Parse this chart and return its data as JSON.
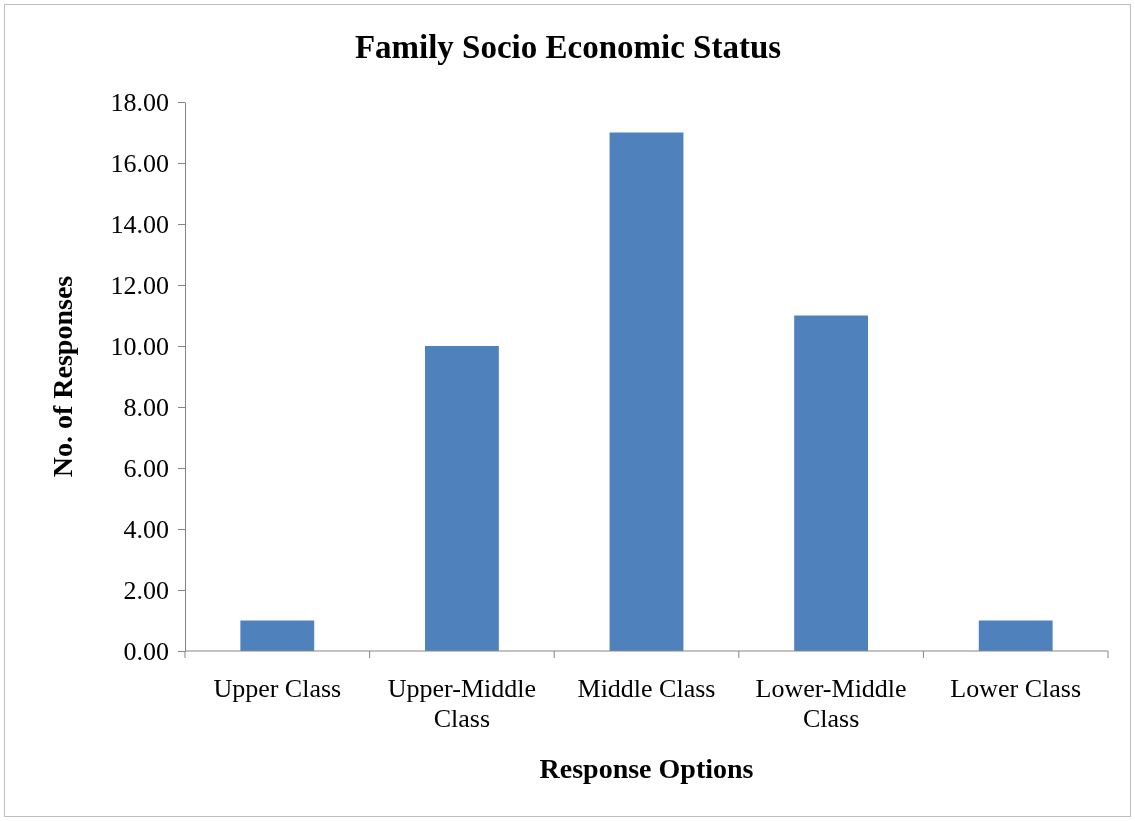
{
  "chart_data": {
    "type": "bar",
    "title": "Family Socio Economic Status",
    "xlabel": "Response Options",
    "ylabel": "No. of Responses",
    "categories": [
      "Upper Class",
      "Upper-Middle Class",
      "Middle Class",
      "Lower-Middle Class",
      "Lower Class"
    ],
    "values": [
      1,
      10,
      17,
      11,
      1
    ],
    "color": "#4f81bd",
    "ylim": [
      0,
      18
    ],
    "yticks": [
      {
        "value": 0,
        "label": "0.00"
      },
      {
        "value": 2,
        "label": "2.00"
      },
      {
        "value": 4,
        "label": "4.00"
      },
      {
        "value": 6,
        "label": "6.00"
      },
      {
        "value": 8,
        "label": "8.00"
      },
      {
        "value": 10,
        "label": "10.00"
      },
      {
        "value": 12,
        "label": "12.00"
      },
      {
        "value": 14,
        "label": "14.00"
      },
      {
        "value": 16,
        "label": "16.00"
      },
      {
        "value": 18,
        "label": "18.00"
      }
    ],
    "grid": false
  }
}
